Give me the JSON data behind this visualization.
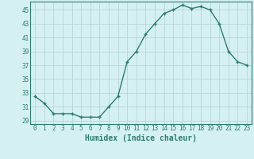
{
  "x": [
    0,
    1,
    2,
    3,
    4,
    5,
    6,
    7,
    8,
    9,
    10,
    11,
    12,
    13,
    14,
    15,
    16,
    17,
    18,
    19,
    20,
    21,
    22,
    23
  ],
  "y": [
    32.5,
    31.5,
    30.0,
    30.0,
    30.0,
    29.5,
    29.5,
    29.5,
    31.0,
    32.5,
    37.5,
    39.0,
    41.5,
    43.0,
    44.5,
    45.0,
    45.7,
    45.2,
    45.5,
    45.0,
    43.0,
    39.0,
    37.5,
    37.0
  ],
  "xlabel": "Humidex (Indice chaleur)",
  "bg_color": "#d4f0f0",
  "line_color": "#2d7d6f",
  "marker": "+",
  "grid_color": "#b8d4d4",
  "ylim": [
    28.5,
    46.2
  ],
  "xlim": [
    -0.5,
    23.5
  ],
  "yticks": [
    29,
    31,
    33,
    35,
    37,
    39,
    41,
    43,
    45
  ],
  "xtick_labels": [
    "0",
    "1",
    "2",
    "3",
    "4",
    "5",
    "6",
    "7",
    "8",
    "9",
    "10",
    "11",
    "12",
    "13",
    "14",
    "15",
    "16",
    "17",
    "18",
    "19",
    "20",
    "21",
    "22",
    "23"
  ],
  "tick_fontsize": 5.5,
  "xlabel_fontsize": 7.0,
  "line_width": 1.0,
  "marker_size": 3.5,
  "marker_edge_width": 1.0
}
